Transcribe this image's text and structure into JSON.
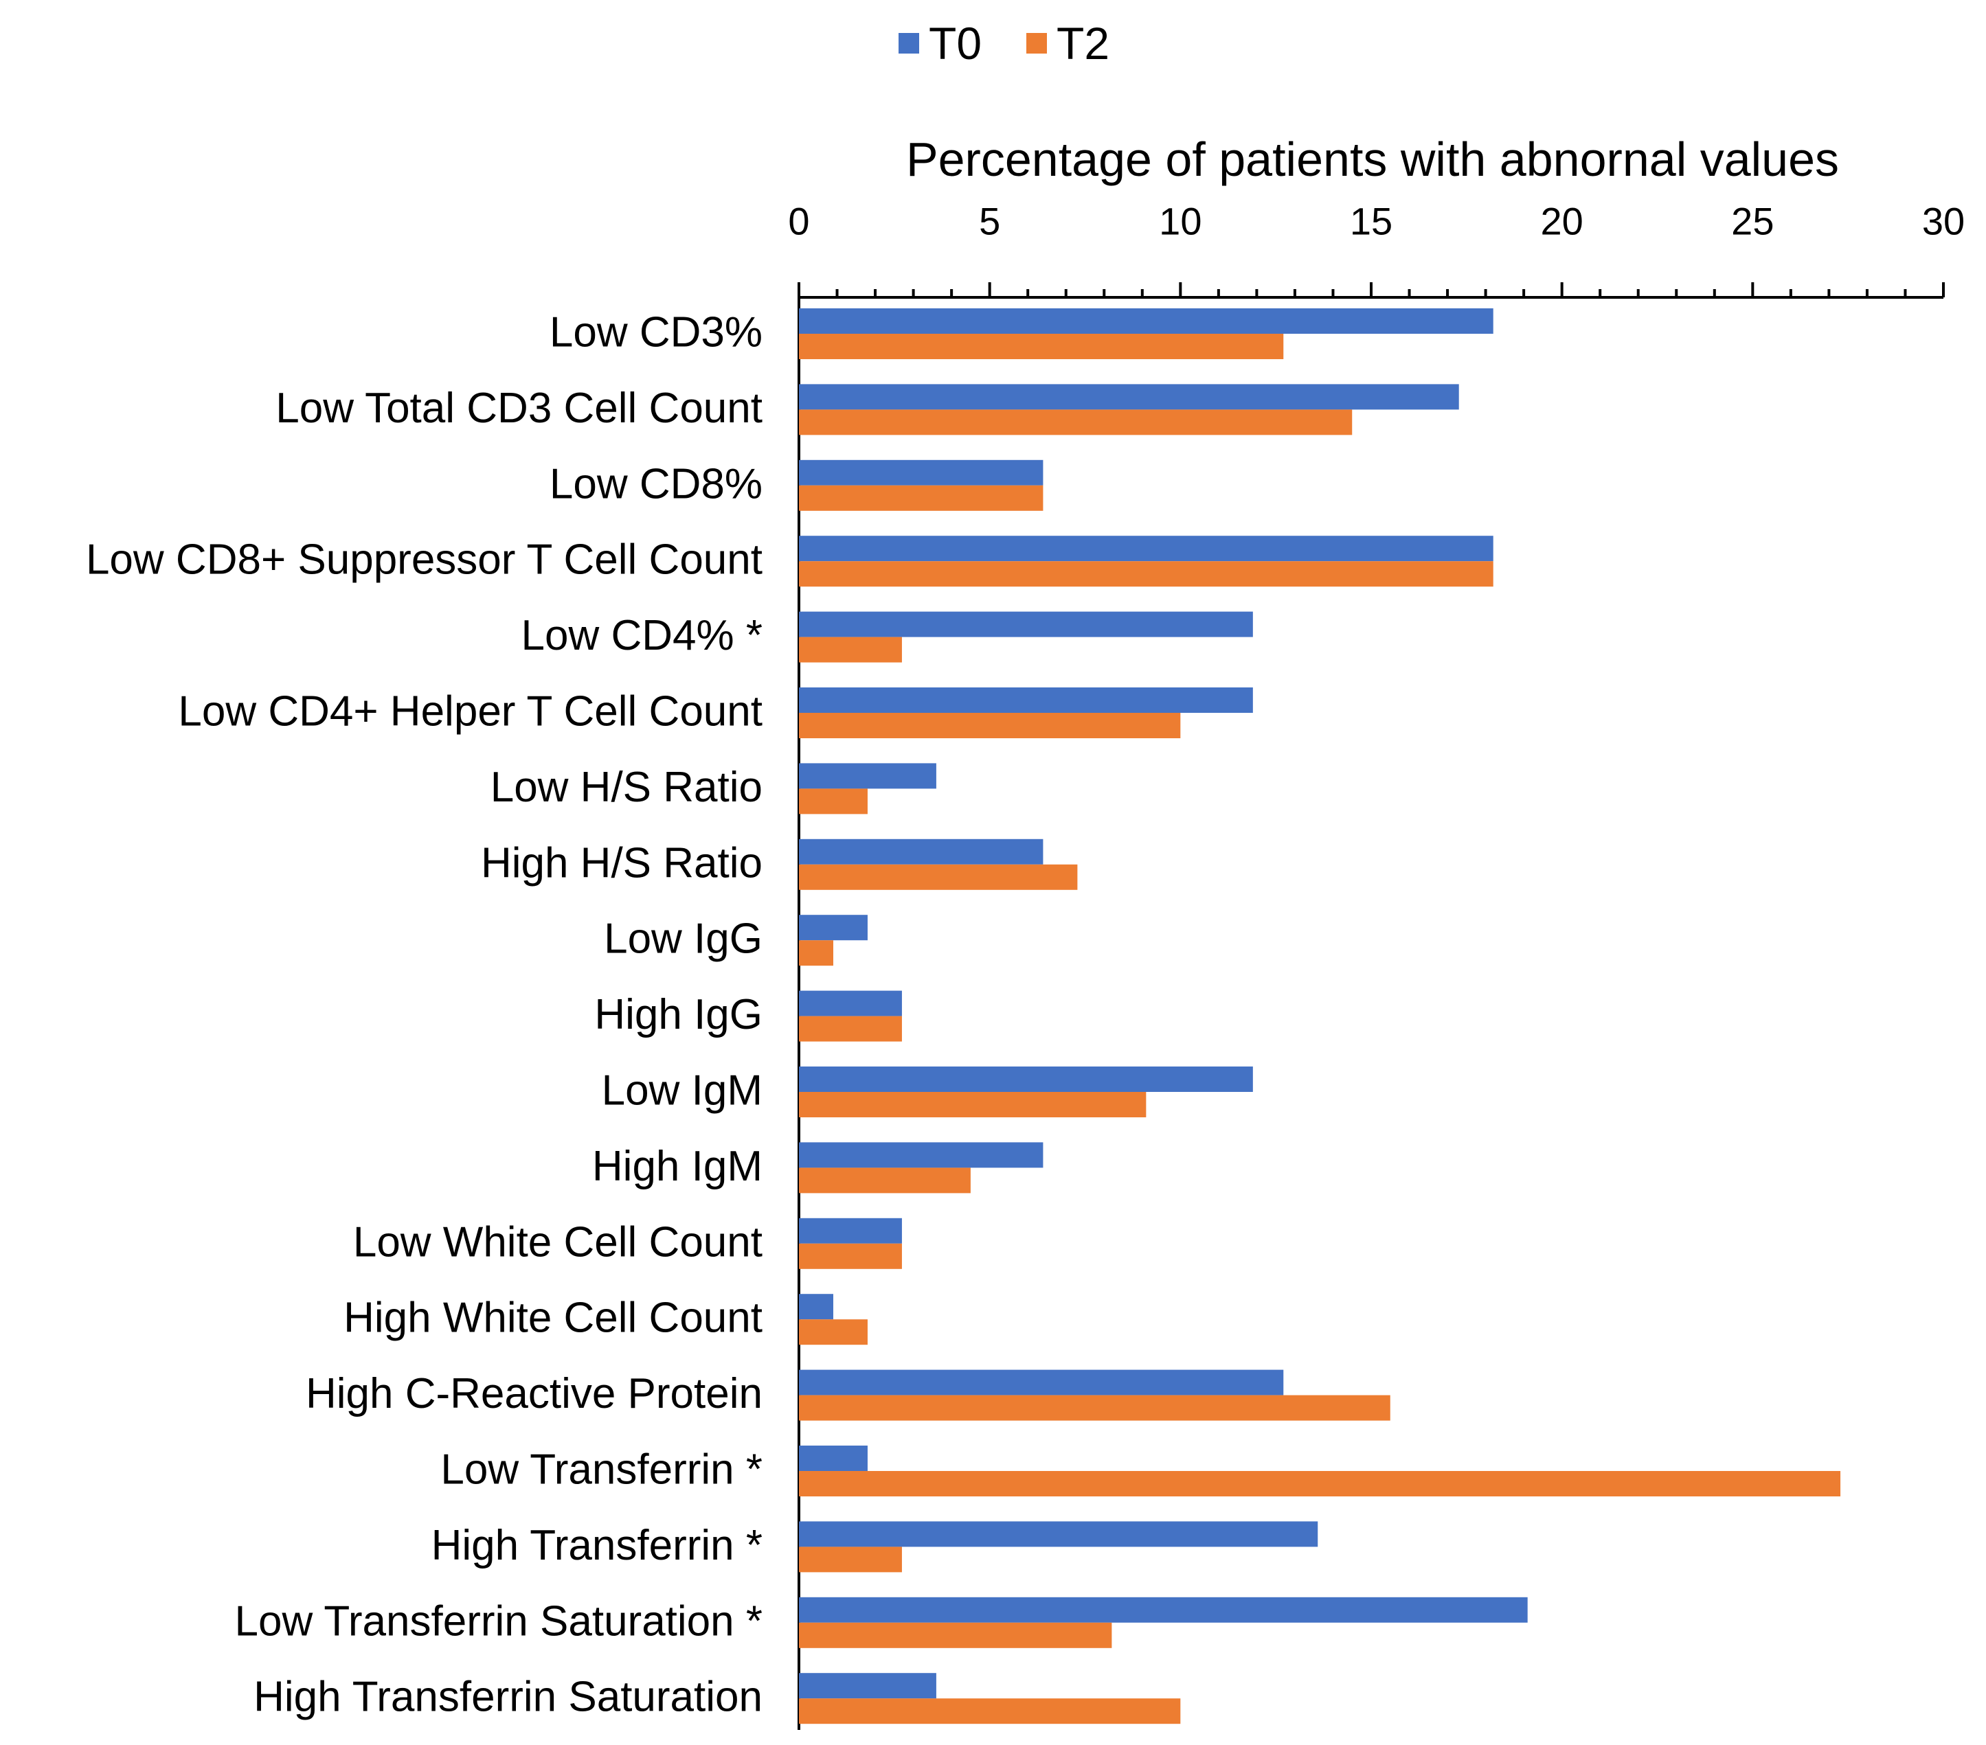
{
  "chart_data": {
    "type": "bar",
    "orientation": "horizontal",
    "title": "",
    "xlabel": "Percentage of patients with abnornal values",
    "ylabel": "",
    "xlim": [
      0,
      30
    ],
    "xticks": [
      0,
      5,
      10,
      15,
      20,
      25,
      30
    ],
    "minor_tick_step": 1,
    "x_axis_position": "top",
    "grid": false,
    "legend_position": "top-center",
    "categories": [
      "Low CD3%",
      "Low Total CD3 Cell Count",
      "Low CD8%",
      "Low CD8+ Suppressor T Cell Count",
      "Low CD4% *",
      "Low CD4+ Helper T Cell Count",
      "Low H/S Ratio",
      "High H/S Ratio",
      "Low IgG",
      "High IgG",
      "Low IgM",
      "High IgM",
      "Low White Cell Count",
      "High White Cell Count",
      "High C-Reactive Protein",
      "Low Transferrin *",
      "High Transferrin *",
      "Low Transferrin Saturation *",
      "High Transferrin Saturation"
    ],
    "series": [
      {
        "name": "T0",
        "color": "#4472C4",
        "values": [
          18.2,
          17.3,
          6.4,
          18.2,
          11.9,
          11.9,
          3.6,
          6.4,
          1.8,
          2.7,
          11.9,
          6.4,
          2.7,
          0.9,
          12.7,
          1.8,
          13.6,
          19.1,
          3.6
        ]
      },
      {
        "name": "T2",
        "color": "#ED7D31",
        "values": [
          12.7,
          14.5,
          6.4,
          18.2,
          2.7,
          10.0,
          1.8,
          7.3,
          0.9,
          2.7,
          9.1,
          4.5,
          2.7,
          1.8,
          15.5,
          27.3,
          2.7,
          8.2,
          10.0
        ]
      }
    ]
  }
}
